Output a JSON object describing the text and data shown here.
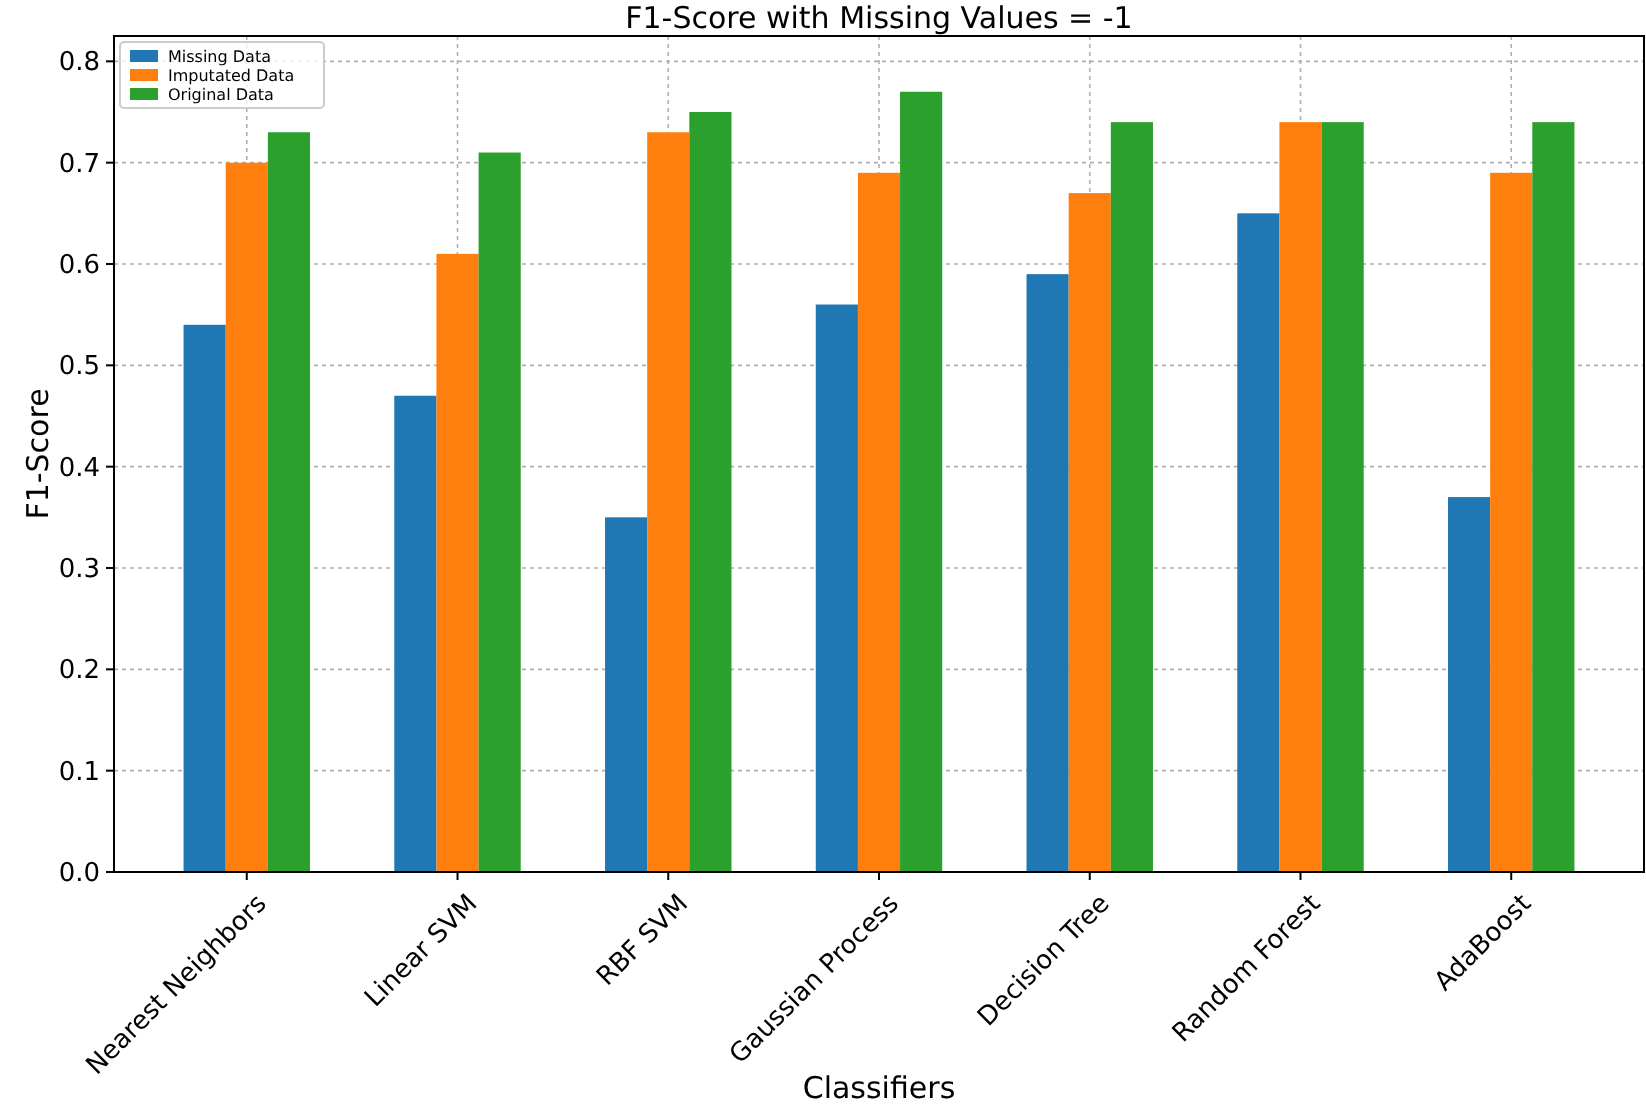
{
  "chart_data": {
    "type": "bar",
    "title": "F1-Score with Missing Values = -1",
    "xlabel": "Classifiers",
    "ylabel": "F1-Score",
    "categories": [
      "Nearest Neighbors",
      "Linear SVM",
      "RBF SVM",
      "Gaussian Process",
      "Decision Tree",
      "Random Forest",
      "AdaBoost"
    ],
    "series": [
      {
        "name": "Missing Data",
        "color": "#1f77b4",
        "values": [
          0.54,
          0.47,
          0.35,
          0.56,
          0.59,
          0.65,
          0.37
        ]
      },
      {
        "name": "Imputated Data",
        "color": "#ff7f0e",
        "values": [
          0.7,
          0.61,
          0.73,
          0.69,
          0.67,
          0.74,
          0.69
        ]
      },
      {
        "name": "Original Data",
        "color": "#2ca02c",
        "values": [
          0.73,
          0.71,
          0.75,
          0.77,
          0.74,
          0.74,
          0.74
        ]
      }
    ],
    "ylim": [
      0,
      0.825
    ],
    "yticks": [
      {
        "value": 0,
        "label": "0.0"
      },
      0.1,
      0.2,
      0.3,
      0.4,
      0.5,
      0.6,
      0.7,
      0.8
    ],
    "grid": true,
    "legend": "top left"
  }
}
